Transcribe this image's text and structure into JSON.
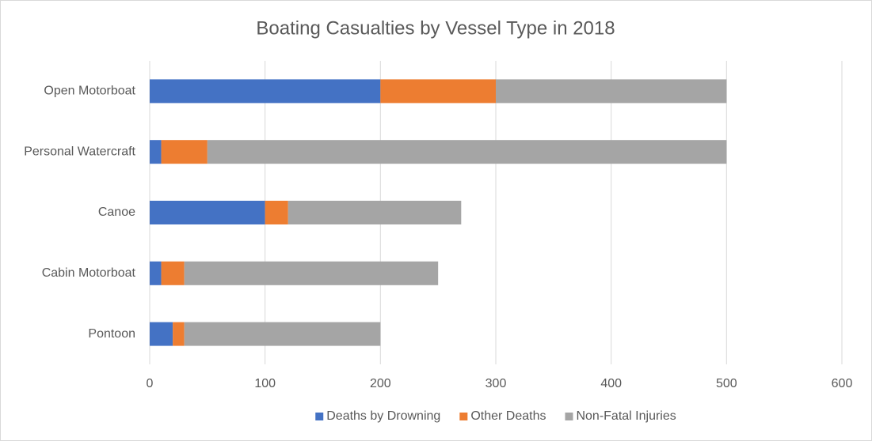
{
  "chart_data": {
    "type": "stacked-bar-horizontal",
    "title": "Boating Casualties by Vessel Type in 2018",
    "categories": [
      "Open Motorboat",
      "Personal Watercraft",
      "Canoe",
      "Cabin Motorboat",
      "Pontoon"
    ],
    "series": [
      {
        "name": "Deaths by Drowning",
        "color": "#4472c4",
        "values": [
          200,
          10,
          100,
          10,
          20
        ]
      },
      {
        "name": "Other Deaths",
        "color": "#ed7d31",
        "values": [
          100,
          40,
          20,
          20,
          10
        ]
      },
      {
        "name": "Non-Fatal Injuries",
        "color": "#a5a5a5",
        "values": [
          200,
          450,
          150,
          220,
          170
        ]
      }
    ],
    "xlim": [
      0,
      600
    ],
    "xticks": [
      0,
      100,
      200,
      300,
      400,
      500,
      600
    ],
    "grid": true,
    "legend": "bottom"
  }
}
